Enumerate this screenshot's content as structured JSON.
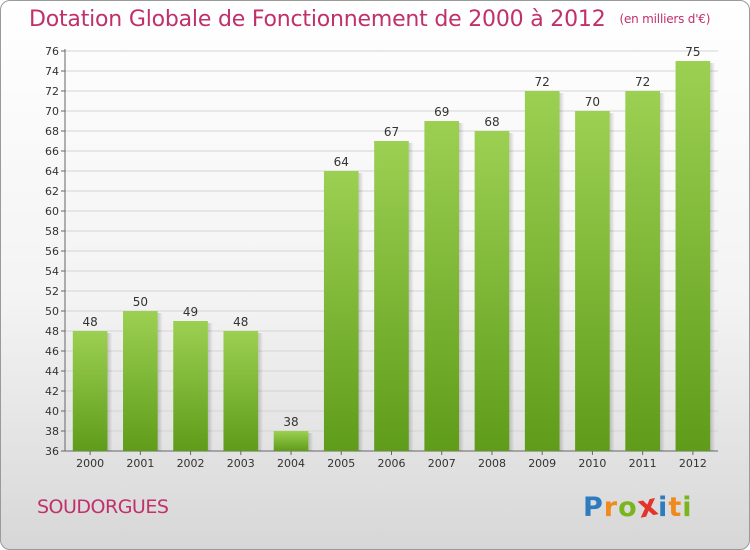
{
  "header": {
    "title": "Dotation Globale de Fonctionnement de 2000 à 2012",
    "unit": "(en milliers d'€)"
  },
  "footer": {
    "place": "SOUDORGUES",
    "logo": {
      "letters": [
        "P",
        "r",
        "o",
        "x",
        "i",
        "t",
        "i"
      ],
      "colors": [
        "#2e7bbf",
        "#f08a1c",
        "#7ab51d",
        "#e4332a",
        "#2e7bbf",
        "#f08a1c",
        "#7ab51d"
      ]
    }
  },
  "chart_data": {
    "type": "bar",
    "categories": [
      "2000",
      "2001",
      "2002",
      "2003",
      "2004",
      "2005",
      "2006",
      "2007",
      "2008",
      "2009",
      "2010",
      "2011",
      "2012"
    ],
    "values": [
      48,
      50,
      49,
      48,
      38,
      64,
      67,
      69,
      68,
      72,
      70,
      72,
      75
    ],
    "ylim": [
      36,
      76
    ],
    "ytick_step": 2,
    "grid": true,
    "bar_color_top": "#9cd052",
    "bar_color_bottom": "#5f9c1a"
  }
}
